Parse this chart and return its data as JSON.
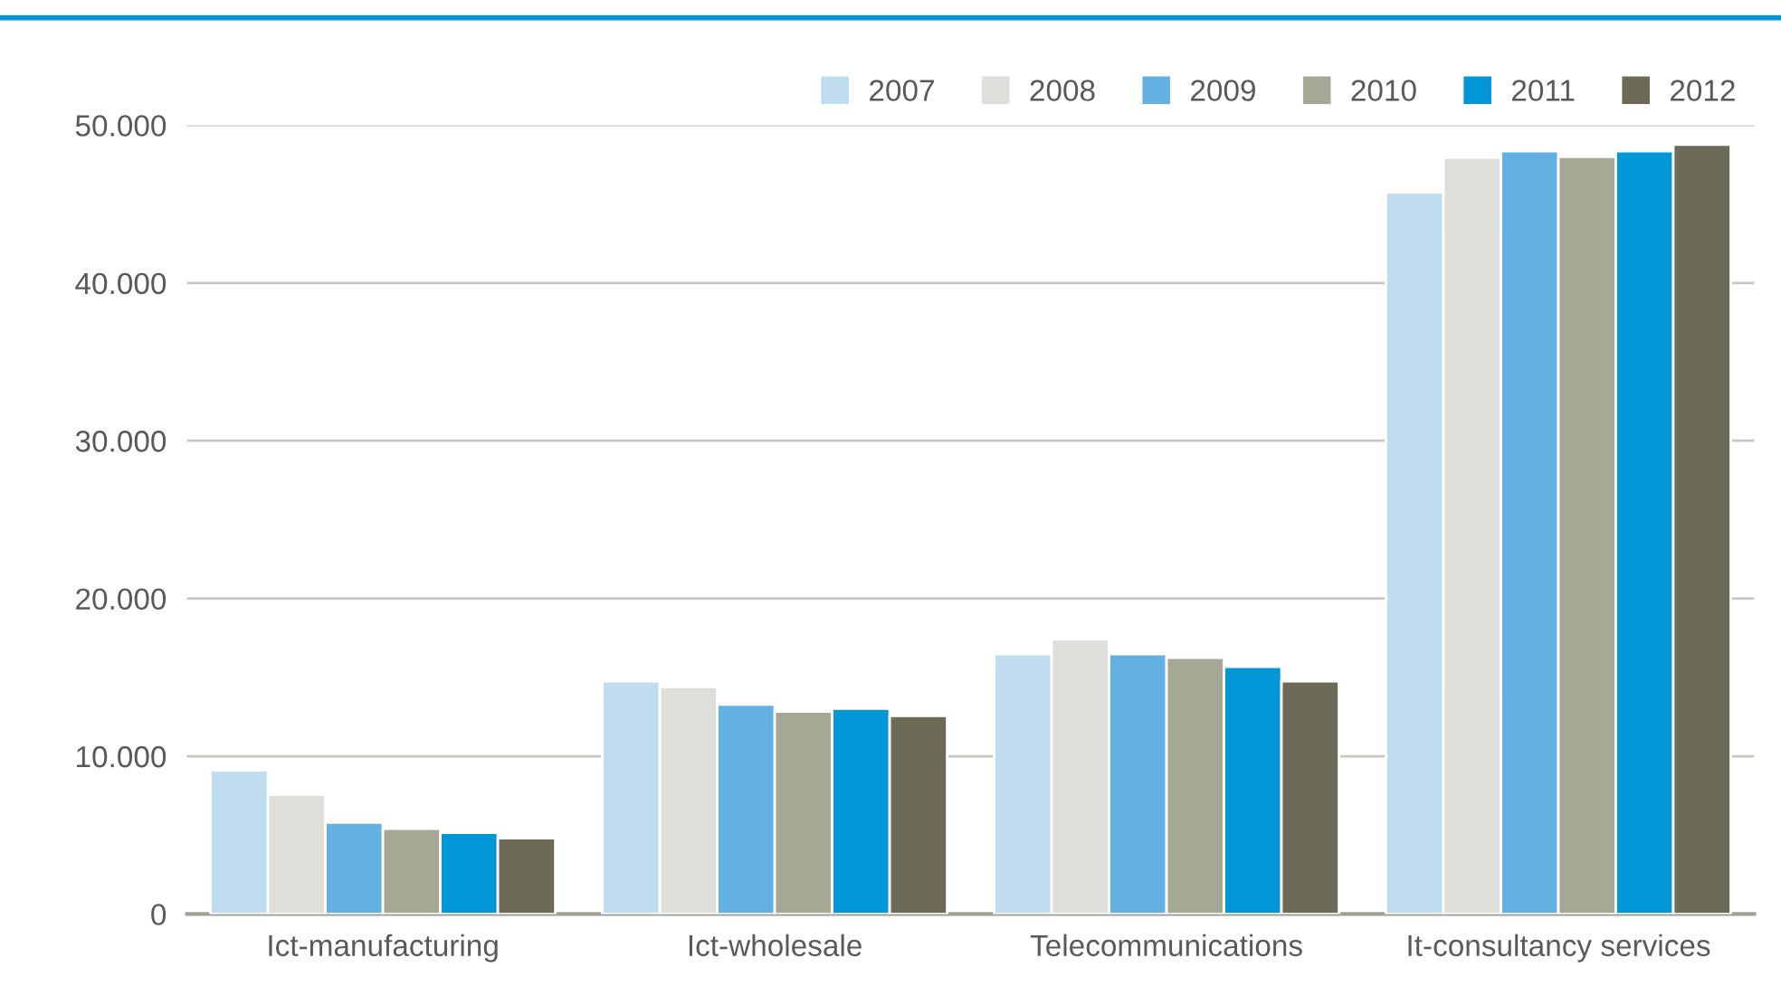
{
  "chart_data": {
    "type": "bar",
    "categories": [
      "Ict-manufacturing",
      "Ict-wholesale",
      "Telecommunications",
      "It-consultancy services"
    ],
    "series": [
      {
        "name": "2007",
        "color": "#c0dcf0",
        "values": [
          9100,
          14750,
          16470,
          45740
        ]
      },
      {
        "name": "2008",
        "color": "#dededa",
        "values": [
          7570,
          14400,
          17400,
          47960
        ]
      },
      {
        "name": "2009",
        "color": "#63b1e2",
        "values": [
          5800,
          13280,
          16470,
          48350
        ]
      },
      {
        "name": "2010",
        "color": "#a7a795",
        "values": [
          5410,
          12830,
          16240,
          48000
        ]
      },
      {
        "name": "2011",
        "color": "#0096d7",
        "values": [
          5150,
          13020,
          15670,
          48350
        ]
      },
      {
        "name": "2012",
        "color": "#6d6a57",
        "values": [
          4800,
          12560,
          14750,
          48770
        ]
      }
    ],
    "ylim": [
      0,
      50000
    ],
    "yticks": [
      0,
      {
        "value": 10000,
        "label": "10.000"
      },
      {
        "value": 20000,
        "label": "20.000"
      },
      {
        "value": 30000,
        "label": "30.000"
      },
      {
        "value": 40000,
        "label": "40.000"
      },
      {
        "value": 50000,
        "label": "50.000"
      }
    ],
    "grid": "y",
    "legend": "top right"
  }
}
